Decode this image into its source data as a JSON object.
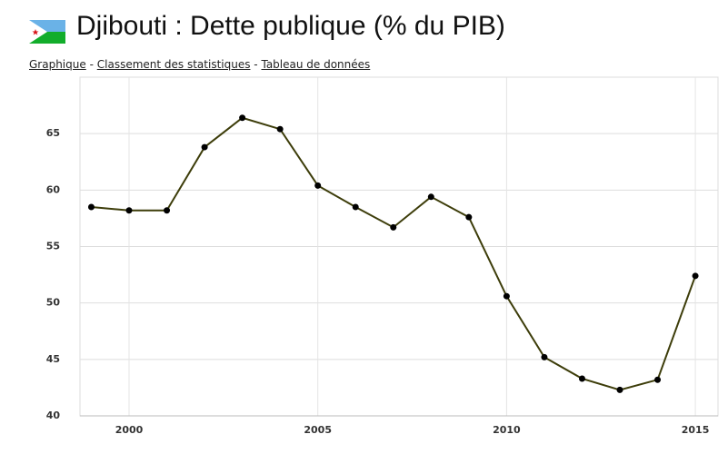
{
  "title": "Djibouti : Dette publique (% du PIB)",
  "links": [
    "Graphique",
    "Classement des statistiques",
    "Tableau de données"
  ],
  "separator": "-",
  "chart_data": {
    "type": "line",
    "x": [
      1999,
      2000,
      2001,
      2002,
      2003,
      2004,
      2005,
      2006,
      2007,
      2008,
      2009,
      2010,
      2011,
      2012,
      2013,
      2014,
      2015
    ],
    "series": [
      {
        "name": "Dette publique",
        "color": "#3d3d0a",
        "values": [
          58.5,
          58.2,
          58.2,
          63.8,
          66.4,
          65.4,
          60.4,
          58.5,
          56.7,
          59.4,
          57.6,
          50.6,
          45.2,
          43.3,
          42.3,
          43.2,
          52.4
        ]
      }
    ],
    "xlim": [
      1998.7,
      2015.6
    ],
    "xticks": [
      2000,
      2005,
      2010,
      2015
    ],
    "ylim": [
      40,
      70
    ],
    "yticks": [
      40,
      45,
      50,
      55,
      60,
      65
    ],
    "grid": true
  }
}
